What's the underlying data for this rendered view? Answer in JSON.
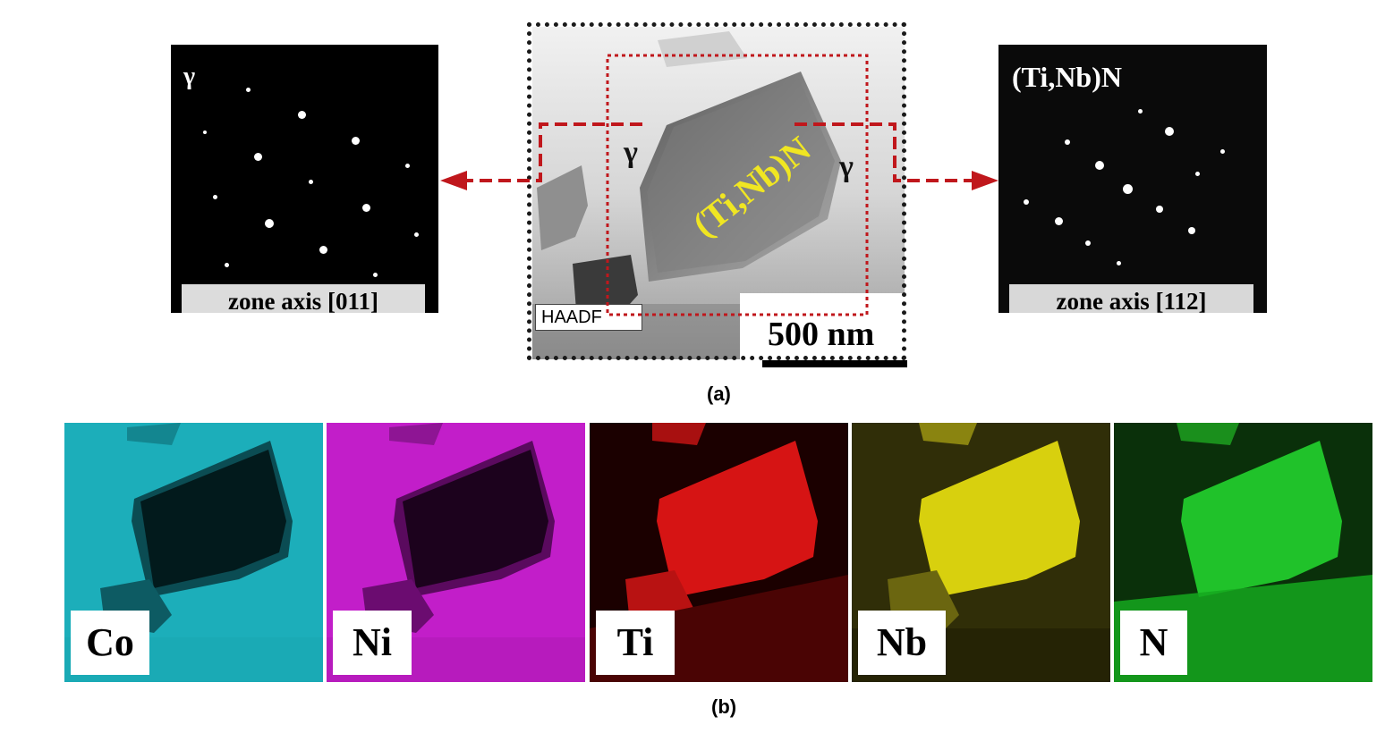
{
  "panel_a": {
    "caption": "(a)",
    "left_pattern": {
      "phase_label": "γ",
      "zone_axis": "zone axis [011]"
    },
    "right_pattern": {
      "phase_label": "(Ti,Nb)N",
      "zone_axis": "zone axis [112]"
    },
    "haadf": {
      "label": "HAADF",
      "precipitate_label": "(Ti,Nb)N",
      "matrix_label_left": "γ",
      "matrix_label_right": "γ",
      "scale_bar": "500 nm"
    }
  },
  "panel_b": {
    "caption": "(b)",
    "maps": [
      {
        "element": "Co",
        "color": "#1aa8b4"
      },
      {
        "element": "Ni",
        "color": "#c21ec9"
      },
      {
        "element": "Ti",
        "color": "#d61414"
      },
      {
        "element": "Nb",
        "color": "#d8d00e"
      },
      {
        "element": "N",
        "color": "#20c22a"
      }
    ]
  },
  "colors": {
    "arrow": "#c0171c",
    "precipitate_text": "#f0e622"
  }
}
